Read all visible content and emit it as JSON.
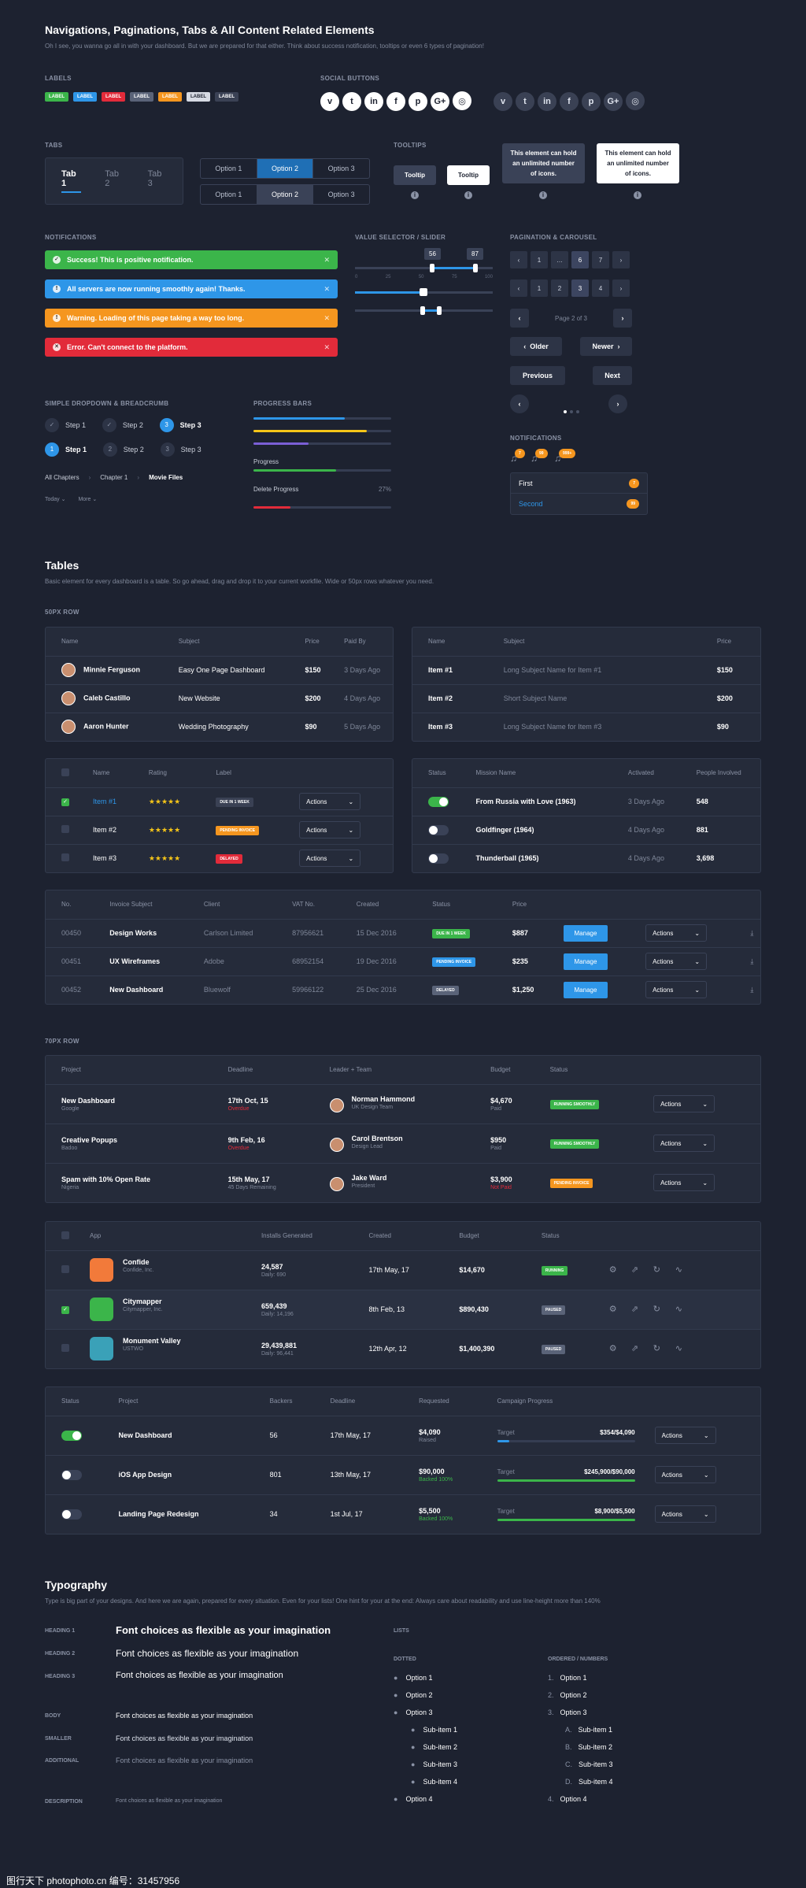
{
  "header": {
    "title": "Navigations, Paginations, Tabs & All Content Related Elements",
    "subtitle": "Oh I see, you wanna go all in with your dashboard. But we are prepared for that either. Think about success notification, tooltips or even 6 types of pagination!"
  },
  "labels": {
    "section": "LABELS",
    "items": [
      {
        "text": "LABEL",
        "color": "#3bb54a"
      },
      {
        "text": "LABEL",
        "color": "#2e96e8"
      },
      {
        "text": "LABEL",
        "color": "#e22b3a"
      },
      {
        "text": "LABEL",
        "color": "#5a6378"
      },
      {
        "text": "LABEL",
        "color": "#f5961f"
      },
      {
        "text": "LABEL",
        "color": "#d6dae3"
      },
      {
        "text": "LABEL",
        "color": "#3a4154"
      }
    ]
  },
  "social": {
    "section": "SOCIAL BUTTONS",
    "icons": [
      "vimeo-icon",
      "twitter-icon",
      "linkedin-icon",
      "facebook-icon",
      "pinterest-icon",
      "google-plus-icon",
      "instagram-icon"
    ],
    "glyphs": [
      "v",
      "t",
      "in",
      "f",
      "p",
      "G+",
      "◎"
    ]
  },
  "tabs": {
    "section": "TABS",
    "items": [
      "Tab 1",
      "Tab 2",
      "Tab 3"
    ],
    "seg1": [
      "Option 1",
      "Option 2",
      "Option 3"
    ],
    "seg2": [
      "Option 1",
      "Option 2",
      "Option 3"
    ]
  },
  "tooltips": {
    "section": "TOOLTIPS",
    "t1": "Tooltip",
    "t2": "Tooltip",
    "t3": "This element can hold an unlimited number of icons.",
    "t4": "This element can hold an unlimited number of icons."
  },
  "notifications": {
    "section": "NOTIFICATIONS",
    "items": [
      {
        "text": "Success! This is positive notification.",
        "color": "#3bb54a"
      },
      {
        "text": "All servers are now running smoothly again! Thanks.",
        "color": "#2e96e8"
      },
      {
        "text": "Warning. Loading of this page taking a way too long.",
        "color": "#f5961f"
      },
      {
        "text": "Error. Can't connect to the platform.",
        "color": "#e22b3a"
      }
    ]
  },
  "slider": {
    "section": "VALUE SELECTOR / SLIDER",
    "v1": "56",
    "v2": "87",
    "ticks": [
      "0",
      "25",
      "50",
      "75",
      "100"
    ]
  },
  "pagination": {
    "section": "PAGINATION & CAROUSEL",
    "p1": [
      "‹",
      "1",
      "…",
      "6",
      "7",
      "›"
    ],
    "p2": [
      "‹",
      "1",
      "2",
      "3",
      "4",
      "›"
    ],
    "pageinfo": "Page 2 of 3",
    "older": "Older",
    "newer": "Newer",
    "previous": "Previous",
    "next": "Next"
  },
  "notif_badges": {
    "section": "NOTIFICATIONS",
    "counts": [
      "7",
      "99",
      "999+"
    ],
    "list": [
      {
        "text": "First",
        "count": "7"
      },
      {
        "text": "Second",
        "count": "99"
      }
    ]
  },
  "dropdown": {
    "section": "SIMPLE DROPDOWN & BREADCRUMB",
    "steps1": [
      "Step 1",
      "Step 2",
      "Step 3"
    ],
    "steps2": [
      "Step 1",
      "Step 2",
      "Step 3"
    ],
    "crumbs": [
      "All Chapters",
      "Chapter 1",
      "Movie Files"
    ],
    "dd1": "Today",
    "dd2": "More"
  },
  "progress": {
    "section": "PROGRESS BARS",
    "bars": [
      {
        "color": "#2e96e8",
        "value": 0.66
      },
      {
        "color": "#f5c518",
        "value": 0.82
      },
      {
        "color": "#7b5fd6",
        "value": 0.4
      }
    ],
    "p_label": "Progress",
    "p_value": 0.6,
    "d_label": "Delete Progress",
    "d_pct": "27%",
    "d_value": 0.27
  },
  "tables": {
    "title": "Tables",
    "subtitle": "Basic element for every dashboard is a table. So go ahead, drag and drop it to your current workfile. Wide or 50px rows whatever you need.",
    "row50": "50PX ROW",
    "row70": "70PX ROW"
  },
  "t1": {
    "headers": [
      "Name",
      "Subject",
      "Price",
      "Paid By"
    ],
    "rows": [
      [
        "Minnie Ferguson",
        "Easy One Page Dashboard",
        "$150",
        "3 Days Ago"
      ],
      [
        "Caleb Castillo",
        "New Website",
        "$200",
        "4 Days Ago"
      ],
      [
        "Aaron Hunter",
        "Wedding Photography",
        "$90",
        "5 Days Ago"
      ]
    ]
  },
  "t2": {
    "headers": [
      "Name",
      "Subject",
      "Price"
    ],
    "rows": [
      [
        "Item #1",
        "Long Subject Name for Item #1",
        "$150"
      ],
      [
        "Item #2",
        "Short Subject Name",
        "$200"
      ],
      [
        "Item #3",
        "Long Subject Name for Item #3",
        "$90"
      ]
    ]
  },
  "t3": {
    "headers": [
      "Name",
      "Rating",
      "Label"
    ],
    "rows": [
      {
        "name": "Item #1",
        "stars": "★★★★★",
        "label": "DUE IN 1 WEEK",
        "lc": "#3a4154",
        "chk": true
      },
      {
        "name": "Item #2",
        "stars": "★★★★★",
        "label": "PENDING INVOICE",
        "lc": "#f5961f",
        "chk": false
      },
      {
        "name": "Item #3",
        "stars": "★★★★★",
        "label": "DELAYED",
        "lc": "#e22b3a",
        "chk": false
      }
    ],
    "action": "Actions"
  },
  "t4": {
    "headers": [
      "Status",
      "Mission Name",
      "Activated",
      "People Involved"
    ],
    "rows": [
      {
        "on": true,
        "name": "From Russia with Love (1963)",
        "act": "3 Days Ago",
        "ppl": "548"
      },
      {
        "on": false,
        "name": "Goldfinger (1964)",
        "act": "4 Days Ago",
        "ppl": "881"
      },
      {
        "on": false,
        "name": "Thunderball (1965)",
        "act": "4 Days Ago",
        "ppl": "3,698"
      }
    ]
  },
  "t5": {
    "headers": [
      "No.",
      "Invoice Subject",
      "Client",
      "VAT No.",
      "Created",
      "Status",
      "Price"
    ],
    "rows": [
      {
        "no": "00450",
        "subj": "Design Works",
        "client": "Carlson Limited",
        "vat": "87956621",
        "created": "15 Dec 2016",
        "status": "DUE IN 1 WEEK",
        "sc": "#3bb54a",
        "price": "$887"
      },
      {
        "no": "00451",
        "subj": "UX Wireframes",
        "client": "Adobe",
        "vat": "68952154",
        "created": "19 Dec 2016",
        "status": "PENDING INVOICE",
        "sc": "#2e96e8",
        "price": "$235"
      },
      {
        "no": "00452",
        "subj": "New Dashboard",
        "client": "Bluewolf",
        "vat": "59966122",
        "created": "25 Dec 2016",
        "status": "DELAYED",
        "sc": "#5a6378",
        "price": "$1,250"
      }
    ],
    "manage": "Manage",
    "action": "Actions"
  },
  "t6": {
    "headers": [
      "Project",
      "Deadline",
      "Leader + Team",
      "Budget",
      "Status"
    ],
    "rows": [
      {
        "p": "New Dashboard",
        "ps": "Google",
        "d": "17th Oct, 15",
        "ds": "Overdue",
        "dsc": "#e22b3a",
        "l": "Norman Hammond",
        "ls": "UK Design Team",
        "b": "$4,670",
        "bs": "Paid",
        "bsc": "#7f8799",
        "s": "RUNNING SMOOTHLY",
        "sc": "#3bb54a"
      },
      {
        "p": "Creative Popups",
        "ps": "Badoo",
        "d": "9th Feb, 16",
        "ds": "Overdue",
        "dsc": "#e22b3a",
        "l": "Carol Brentson",
        "ls": "Design Lead",
        "b": "$950",
        "bs": "Paid",
        "bsc": "#7f8799",
        "s": "RUNNING SMOOTHLY",
        "sc": "#3bb54a"
      },
      {
        "p": "Spam with 10% Open Rate",
        "ps": "Nigeria",
        "d": "15th May, 17",
        "ds": "45 Days Remaining",
        "dsc": "#7f8799",
        "l": "Jake Ward",
        "ls": "President",
        "b": "$3,900",
        "bs": "Not Paid",
        "bsc": "#e22b3a",
        "s": "PENDING INVOICE",
        "sc": "#f5961f"
      }
    ],
    "action": "Actions"
  },
  "t7": {
    "headers": [
      "App",
      "Installs Generated",
      "Created",
      "Budget",
      "Status"
    ],
    "rows": [
      {
        "n": "Confide",
        "ns": "Confide, Inc.",
        "c": "#f27a3a",
        "i": "24,587",
        "is": "Daily: 690",
        "cr": "17th May, 17",
        "b": "$14,670",
        "s": "RUNNING",
        "sc": "#3bb54a",
        "chk": false
      },
      {
        "n": "Citymapper",
        "ns": "Citymapper, Inc.",
        "c": "#3bb54a",
        "i": "659,439",
        "is": "Daily: 14,196",
        "cr": "8th Feb, 13",
        "b": "$890,430",
        "s": "PAUSED",
        "sc": "#5a6378",
        "chk": true
      },
      {
        "n": "Monument Valley",
        "ns": "USTWO",
        "c": "#3aa1b8",
        "i": "29,439,881",
        "is": "Daily: 96,441",
        "cr": "12th Apr, 12",
        "b": "$1,400,390",
        "s": "PAUSED",
        "sc": "#5a6378",
        "chk": false
      }
    ]
  },
  "t8": {
    "headers": [
      "Status",
      "Project",
      "Backers",
      "Deadline",
      "Requested",
      "Campaign Progress"
    ],
    "rows": [
      {
        "on": true,
        "p": "New Dashboard",
        "bk": "56",
        "d": "17th May, 17",
        "r": "$4,090",
        "rs": "Raised",
        "rsc": "#7f8799",
        "t": "$354/$4,090",
        "v": 0.09,
        "bc": "#2e96e8"
      },
      {
        "on": false,
        "p": "iOS App Design",
        "bk": "801",
        "d": "13th May, 17",
        "r": "$90,000",
        "rs": "Backed 100%",
        "rsc": "#3bb54a",
        "t": "$245,900/$90,000",
        "v": 1,
        "bc": "#3bb54a"
      },
      {
        "on": false,
        "p": "Landing Page Redesign",
        "bk": "34",
        "d": "1st Jul, 17",
        "r": "$5,500",
        "rs": "Backed 100%",
        "rsc": "#3bb54a",
        "t": "$8,900/$5,500",
        "v": 1,
        "bc": "#3bb54a"
      }
    ],
    "target": "Target",
    "action": "Actions"
  },
  "typo": {
    "title": "Typography",
    "subtitle": "Type is big part of your designs. And here we are again, prepared for every situation. Even for your lists! One hint for your at the end: Always care about readability and use line-height more than 140%",
    "h1l": "HEADING 1",
    "h2l": "HEADING 2",
    "h3l": "HEADING 3",
    "bl": "BODY",
    "sl": "SMALLER",
    "al": "ADDITIONAL",
    "dl": "DESCRIPTION",
    "sample": "Font choices as flexible as your imagination",
    "lists": "LISTS",
    "dotted": "DOTTED",
    "ordered": "ORDERED / NUMBERS",
    "items": [
      "Option 1",
      "Option 2",
      "Option 3"
    ],
    "subitems": [
      "Sub-item 1",
      "Sub-item 2",
      "Sub-item 3",
      "Sub-item 4"
    ],
    "last": "Option 4",
    "nums": [
      "1.",
      "2.",
      "3.",
      "4."
    ],
    "letters": [
      "A.",
      "B.",
      "C.",
      "D."
    ]
  },
  "watermark": "图行天下 photophoto.cn  编号：31457956"
}
